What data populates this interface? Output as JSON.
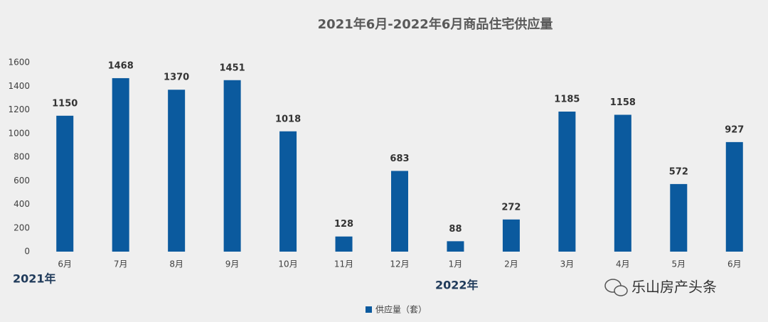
{
  "chart_data": {
    "type": "bar",
    "title": "2021年6月-2022年6月商品住宅供应量",
    "categories": [
      "6月",
      "7月",
      "8月",
      "9月",
      "10月",
      "11月",
      "12月",
      "1月",
      "2月",
      "3月",
      "4月",
      "5月",
      "6月"
    ],
    "values": [
      1150,
      1468,
      1370,
      1451,
      1018,
      128,
      683,
      88,
      272,
      1185,
      1158,
      572,
      927
    ],
    "series_name": "供应量（套）",
    "color": "#0b5a9e",
    "ylim": [
      0,
      1600
    ],
    "yticks": [
      0,
      200,
      400,
      600,
      800,
      1000,
      1200,
      1400,
      1600
    ],
    "grid": false,
    "year_labels": [
      "2021年",
      "2022年"
    ],
    "watermark": "乐山房产头条"
  }
}
